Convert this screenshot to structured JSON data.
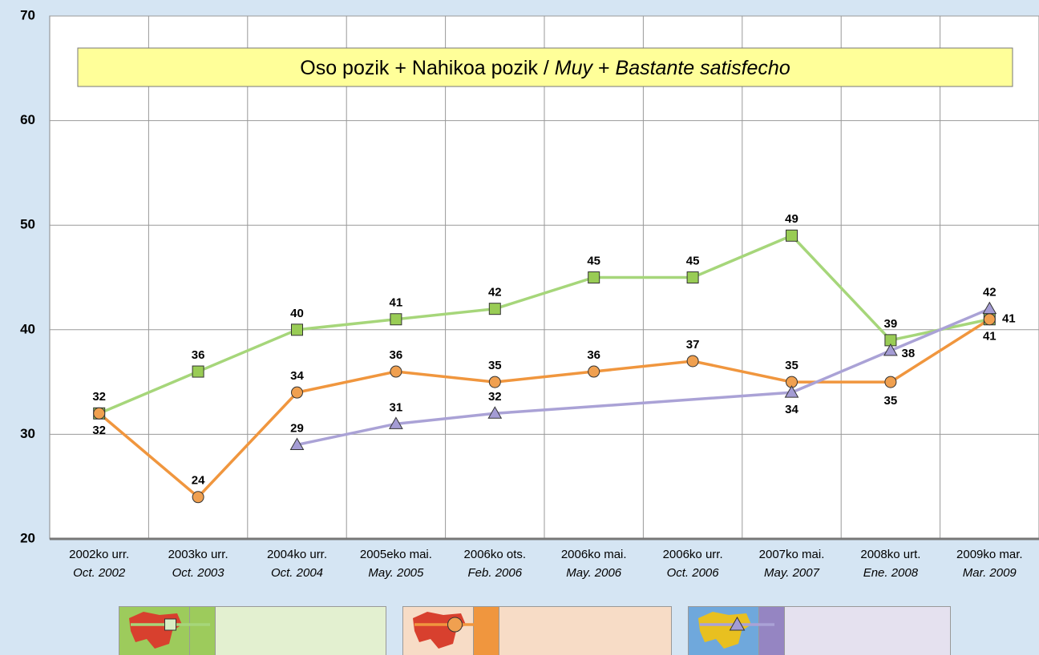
{
  "chart_data": {
    "type": "line",
    "title": [
      "Oso pozik + Nahikoa pozik / ",
      "Muy",
      " + ",
      "Bastante satisfecho"
    ],
    "categories": [
      [
        "2002ko urr.",
        "Oct. 2002"
      ],
      [
        "2003ko urr.",
        "Oct. 2003"
      ],
      [
        "2004ko urr.",
        "Oct. 2004"
      ],
      [
        "2005eko mai.",
        "May. 2005"
      ],
      [
        "2006ko ots.",
        "Feb. 2006"
      ],
      [
        "2006ko mai.",
        "May. 2006"
      ],
      [
        "2006ko urr.",
        "Oct. 2006"
      ],
      [
        "2007ko mai.",
        "May. 2007"
      ],
      [
        "2008ko urt.",
        "Ene. 2008"
      ],
      [
        "2009ko mar.",
        "Mar. 2009"
      ]
    ],
    "series": [
      {
        "name": "EUSKADI",
        "color": "#a6d67a",
        "marker": "square",
        "values": [
          32,
          36,
          40,
          41,
          42,
          45,
          45,
          49,
          39,
          41
        ]
      },
      {
        "name": "ESTATUA ESTADO",
        "color": "#f0963e",
        "marker": "circle",
        "values": [
          32,
          24,
          34,
          36,
          35,
          36,
          37,
          35,
          35,
          41
        ]
      },
      {
        "name": "EUROPA",
        "color": "#aaa2d6",
        "marker": "triangle",
        "values": [
          null,
          null,
          29,
          31,
          32,
          null,
          null,
          34,
          38,
          42
        ]
      }
    ],
    "span_gaps": true,
    "ylim": [
      20,
      70
    ],
    "yticks": [
      20,
      30,
      40,
      50,
      60,
      70
    ],
    "grid": true,
    "legend": "bottom"
  }
}
